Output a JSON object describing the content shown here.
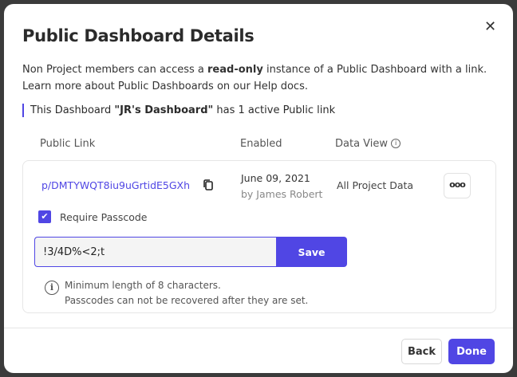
{
  "modal": {
    "title": "Public Dashboard Details",
    "close_icon": "close-icon",
    "description": [
      {
        "text": "Non Project members can access a ",
        "bold": false
      },
      {
        "text": "read-only",
        "bold": true
      },
      {
        "text": " instance of a Public Dashboard with a link.",
        "bold": false
      },
      {
        "text": "\nLearn more about Public Dashboards on our Help docs.",
        "bold": false
      }
    ],
    "notice": [
      {
        "text": "This Dashboard ",
        "bold": false
      },
      {
        "text": "\"JR's Dashboard\"",
        "bold": true
      },
      {
        "text": " has 1 active Public link",
        "bold": false
      }
    ],
    "columns": {
      "public_link": "Public Link",
      "enabled": "Enabled",
      "data_view": "Data View"
    },
    "link": {
      "url": "p/DMTYWQT8iu9uGrtidE5GXh",
      "date": "June 09, 2021",
      "by": "by James Robert",
      "data_view": "All Project Data",
      "more_label": "ooo",
      "require_passcode_label": "Require Passcode",
      "require_passcode_checked": true,
      "passcode_value": "!3/4D%<2;t",
      "save_label": "Save",
      "hint_line1": "Minimum length of 8 characters.",
      "hint_line2": "Passcodes can not be recovered after they are set."
    },
    "footer": {
      "back_label": "Back",
      "done_label": "Done"
    },
    "colors": {
      "accent": "#5046e4",
      "backdrop": "#3b3b3b"
    }
  }
}
